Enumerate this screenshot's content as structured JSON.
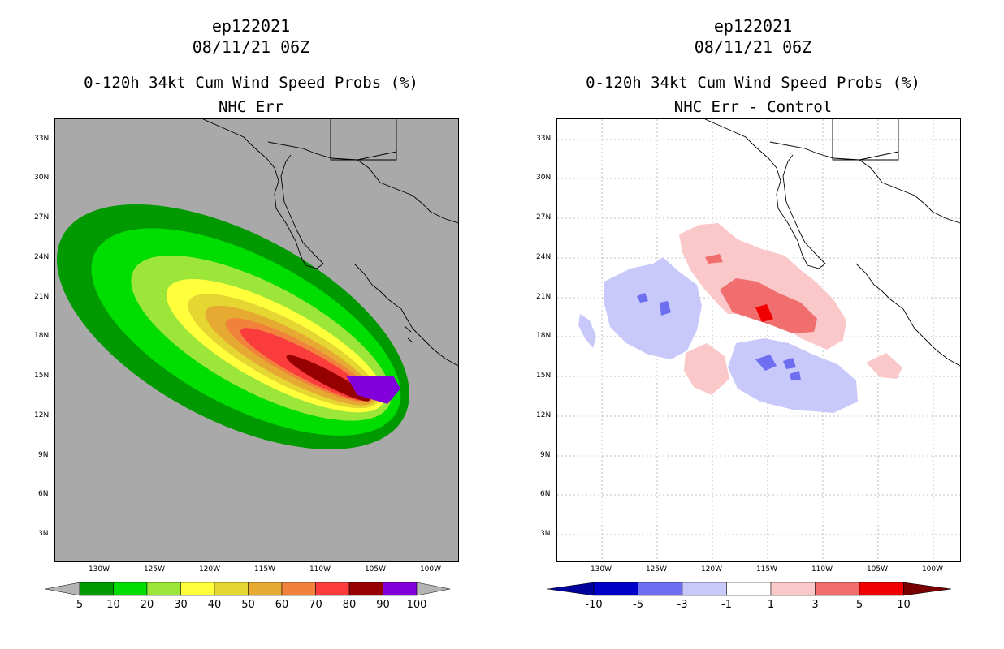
{
  "left_panel": {
    "storm_id": "ep122021",
    "datetime": "08/11/21 06Z",
    "product": "0-120h 34kt Cum Wind Speed Probs (%)",
    "subtitle": "NHC Err",
    "colorbar": {
      "labels": [
        "5",
        "10",
        "20",
        "30",
        "40",
        "50",
        "60",
        "70",
        "80",
        "90",
        "100"
      ],
      "colors": [
        "#009a00",
        "#00dd00",
        "#9be638",
        "#ffff3c",
        "#e5d632",
        "#e6aa32",
        "#f0823c",
        "#fa3c3c",
        "#960000",
        "#8200dc"
      ],
      "under_color": "#b4b4b4",
      "over_color": "#b4b4b4"
    }
  },
  "right_panel": {
    "storm_id": "ep122021",
    "datetime": "08/11/21 06Z",
    "product": "0-120h 34kt Cum Wind Speed Probs (%)",
    "subtitle": "NHC Err - Control",
    "colorbar": {
      "labels": [
        "-10",
        "-5",
        "-3",
        "-1",
        "1",
        "3",
        "5",
        "10"
      ],
      "colors": [
        "#0000c8",
        "#6e6ef0",
        "#c8c8fa",
        "#ffffff",
        "#fac8c8",
        "#f06e6e",
        "#f00000"
      ],
      "under_color": "#00009b",
      "over_color": "#780000"
    }
  },
  "map": {
    "lat_labels": [
      "33N",
      "30N",
      "27N",
      "24N",
      "21N",
      "18N",
      "15N",
      "12N",
      "9N",
      "6N",
      "3N"
    ],
    "lon_labels": [
      "130W",
      "125W",
      "120W",
      "115W",
      "110W",
      "105W",
      "100W"
    ],
    "background_left": "#a9a9a9",
    "background_right": "#ffffff"
  }
}
